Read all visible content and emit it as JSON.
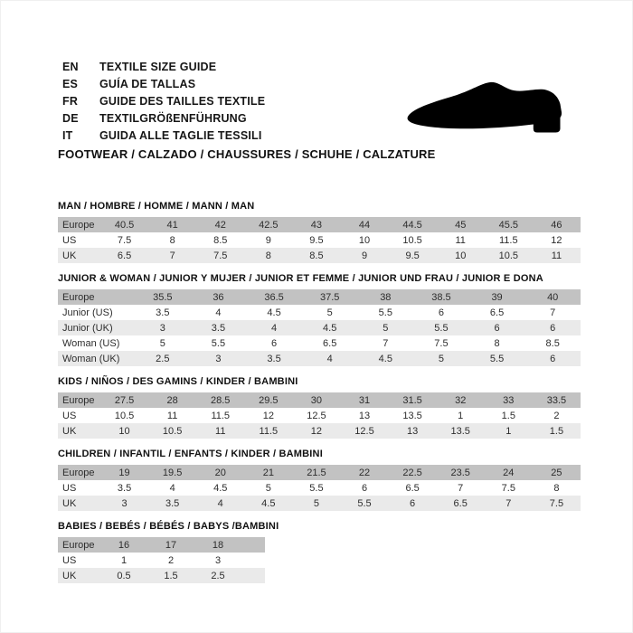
{
  "header": {
    "languages": [
      {
        "code": "EN",
        "text": "TEXTILE SIZE GUIDE"
      },
      {
        "code": "ES",
        "text": "GUÍA DE TALLAS"
      },
      {
        "code": "FR",
        "text": "GUIDE DES TAILLES TEXTILE"
      },
      {
        "code": "DE",
        "text": "TEXTILGRÖßENFÜHRUNG"
      },
      {
        "code": "IT",
        "text": "GUIDA ALLE TAGLIE TESSILI"
      }
    ],
    "category_line": "FOOTWEAR / CALZADO / CHAUSSURES / SCHUHE / CALZATURE",
    "shoe_icon": "dress-shoe-silhouette"
  },
  "colors": {
    "header_row_bg": "#c2c2c2",
    "alt_row_bg": "#eaeaea",
    "row_bg": "#ffffff",
    "title_text": "#111111",
    "table_text": "#2d2d2d",
    "shoe": "#000000"
  },
  "tables": [
    {
      "title": "MAN / HOMBRE / HOMME / MANN / MAN",
      "rows": [
        {
          "label": "Europe",
          "values": [
            "40.5",
            "41",
            "42",
            "42.5",
            "43",
            "44",
            "44.5",
            "45",
            "45.5",
            "46"
          ]
        },
        {
          "label": "US",
          "values": [
            "7.5",
            "8",
            "8.5",
            "9",
            "9.5",
            "10",
            "10.5",
            "11",
            "11.5",
            "12"
          ]
        },
        {
          "label": "UK",
          "values": [
            "6.5",
            "7",
            "7.5",
            "8",
            "8.5",
            "9",
            "9.5",
            "10",
            "10.5",
            "11"
          ]
        }
      ]
    },
    {
      "title": "JUNIOR & WOMAN / JUNIOR Y MUJER / JUNIOR ET FEMME / JUNIOR UND FRAU / JUNIOR E DONA",
      "rows": [
        {
          "label": "Europe",
          "values": [
            "35.5",
            "36",
            "36.5",
            "37.5",
            "38",
            "38.5",
            "39",
            "40"
          ]
        },
        {
          "label": "Junior (US)",
          "values": [
            "3.5",
            "4",
            "4.5",
            "5",
            "5.5",
            "6",
            "6.5",
            "7"
          ]
        },
        {
          "label": "Junior (UK)",
          "values": [
            "3",
            "3.5",
            "4",
            "4.5",
            "5",
            "5.5",
            "6",
            "6"
          ]
        },
        {
          "label": "Woman (US)",
          "values": [
            "5",
            "5.5",
            "6",
            "6.5",
            "7",
            "7.5",
            "8",
            "8.5"
          ]
        },
        {
          "label": "Woman (UK)",
          "values": [
            "2.5",
            "3",
            "3.5",
            "4",
            "4.5",
            "5",
            "5.5",
            "6"
          ]
        }
      ]
    },
    {
      "title": "KIDS / NIÑOS / DES GAMINS / KINDER / BAMBINI",
      "rows": [
        {
          "label": "Europe",
          "values": [
            "27.5",
            "28",
            "28.5",
            "29.5",
            "30",
            "31",
            "31.5",
            "32",
            "33",
            "33.5"
          ]
        },
        {
          "label": "US",
          "values": [
            "10.5",
            "11",
            "11.5",
            "12",
            "12.5",
            "13",
            "13.5",
            "1",
            "1.5",
            "2"
          ]
        },
        {
          "label": "UK",
          "values": [
            "10",
            "10.5",
            "11",
            "11.5",
            "12",
            "12.5",
            "13",
            "13.5",
            "1",
            "1.5"
          ]
        }
      ]
    },
    {
      "title": "CHILDREN / INFANTIL / ENFANTS / KINDER / BAMBINI",
      "rows": [
        {
          "label": "Europe",
          "values": [
            "19",
            "19.5",
            "20",
            "21",
            "21.5",
            "22",
            "22.5",
            "23.5",
            "24",
            "25"
          ]
        },
        {
          "label": "US",
          "values": [
            "3.5",
            "4",
            "4.5",
            "5",
            "5.5",
            "6",
            "6.5",
            "7",
            "7.5",
            "8"
          ]
        },
        {
          "label": "UK",
          "values": [
            "3",
            "3.5",
            "4",
            "4.5",
            "5",
            "5.5",
            "6",
            "6.5",
            "7",
            "7.5"
          ]
        }
      ]
    },
    {
      "title": "BABIES  / BEBÉS / BÉBÉS / BABYS /BAMBINI",
      "rows": [
        {
          "label": "Europe",
          "values": [
            "16",
            "17",
            "18"
          ]
        },
        {
          "label": "US",
          "values": [
            "1",
            "2",
            "3"
          ]
        },
        {
          "label": "UK",
          "values": [
            "0.5",
            "1.5",
            "2.5"
          ]
        }
      ]
    }
  ]
}
